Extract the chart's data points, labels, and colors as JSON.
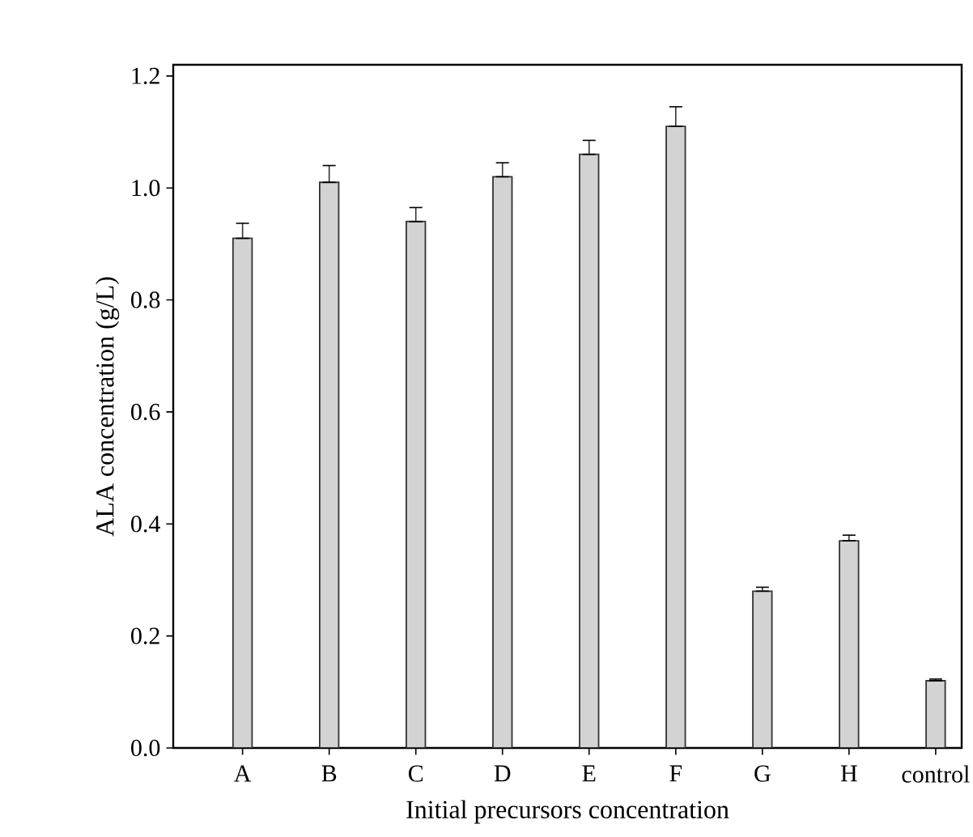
{
  "chart_data": {
    "type": "bar",
    "categories": [
      "A",
      "B",
      "C",
      "D",
      "E",
      "F",
      "G",
      "H",
      "control"
    ],
    "values": [
      0.91,
      1.01,
      0.94,
      1.02,
      1.06,
      1.11,
      0.28,
      0.37,
      0.12
    ],
    "errors": [
      [
        0.91,
        0.937
      ],
      [
        1.01,
        1.04
      ],
      [
        0.94,
        0.965
      ],
      [
        1.02,
        1.045
      ],
      [
        1.06,
        1.085
      ],
      [
        1.11,
        1.145
      ],
      [
        0.28,
        0.287
      ],
      [
        0.37,
        0.38
      ],
      [
        0.12,
        0.123
      ]
    ],
    "color": "#d3d3d3",
    "xlabel": "Initial precursors concentration",
    "ylabel": "ALA concentration (g/L)",
    "ylim": [
      0,
      1.22
    ],
    "yticks": [
      {
        "value": 0,
        "label": "0.0"
      },
      0.2,
      0.4,
      0.6,
      0.8,
      {
        "value": 1.0,
        "label": "1.0"
      },
      1.2
    ],
    "grid": false
  }
}
